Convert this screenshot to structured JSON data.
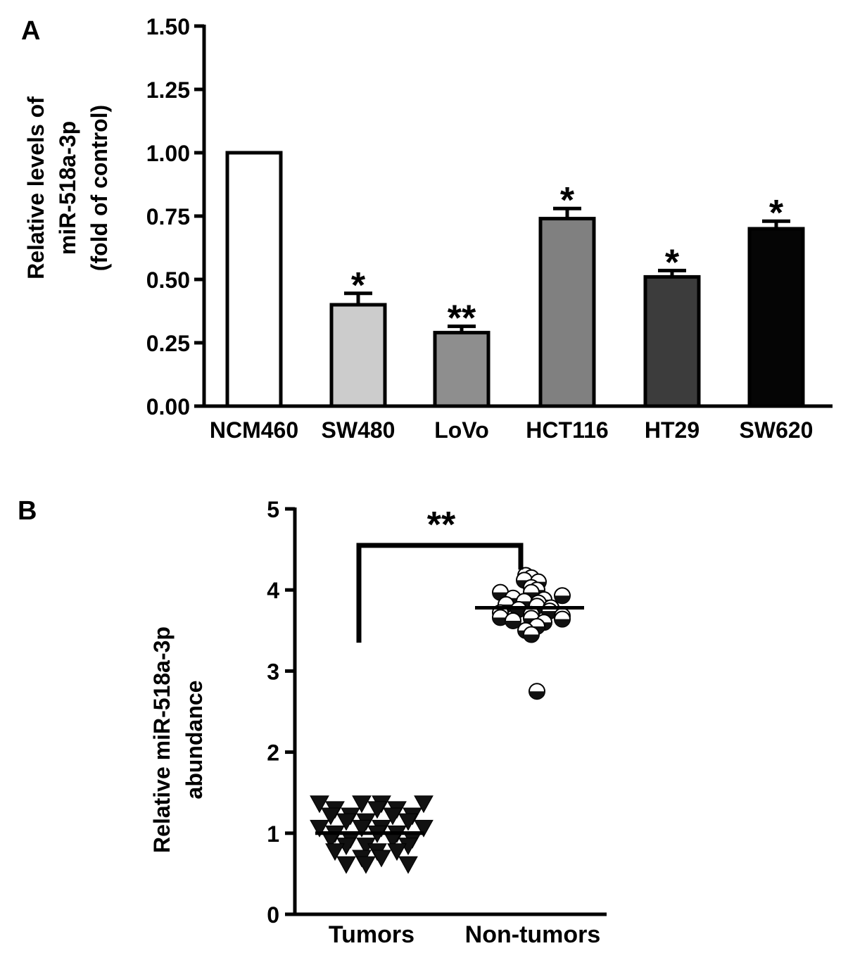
{
  "chart_data": [
    {
      "panel_label": "A",
      "type": "bar",
      "categories": [
        "NCM460",
        "SW480",
        "LoVo",
        "HCT116",
        "HT29",
        "SW620"
      ],
      "values": [
        1.0,
        0.4,
        0.29,
        0.74,
        0.51,
        0.7
      ],
      "errors": [
        0,
        0.045,
        0.025,
        0.04,
        0.025,
        0.03
      ],
      "significance": [
        "",
        "*",
        "**",
        "*",
        "*",
        "*"
      ],
      "colors": [
        "#ffffff",
        "#cccccc",
        "#8e8e8e",
        "#808080",
        "#3c3c3c",
        "#050505"
      ],
      "ylabel_lines": [
        "Relative levels of",
        "miR-518a-3p",
        "(fold of control)"
      ],
      "ylim": [
        0,
        1.5
      ],
      "yticks": [
        "0.00",
        "0.25",
        "0.50",
        "0.75",
        "1.00",
        "1.25",
        "1.50"
      ]
    },
    {
      "panel_label": "B",
      "type": "scatter",
      "categories": [
        "Tumors",
        "Non-tumors"
      ],
      "means": [
        1.0,
        3.78
      ],
      "ylabel_lines": [
        "Relative miR-518a-3p",
        "abundance"
      ],
      "ylim": [
        0,
        5
      ],
      "yticks": [
        "0",
        "1",
        "2",
        "3",
        "4",
        "5"
      ],
      "significance": "**",
      "series": [
        {
          "group": "Tumors",
          "marker": "triangle-down",
          "values": [
            1.37,
            1.37,
            1.37,
            1.37,
            1.3,
            1.3,
            1.3,
            1.22,
            1.22,
            1.22,
            1.22,
            1.15,
            1.15,
            1.15,
            1.07,
            1.07,
            1.07,
            1.07,
            1.0,
            1.0,
            1.0,
            0.93,
            0.93,
            0.93,
            0.93,
            0.85,
            0.85,
            0.85,
            0.78,
            0.78,
            0.78,
            0.7,
            0.7,
            0.62,
            0.62,
            0.62
          ]
        },
        {
          "group": "Non-tumors",
          "marker": "half-filled-circle",
          "values": [
            4.18,
            4.15,
            4.12,
            4.1,
            4.03,
            4.0,
            3.97,
            3.97,
            3.93,
            3.9,
            3.88,
            3.86,
            3.84,
            3.82,
            3.8,
            3.78,
            3.76,
            3.74,
            3.72,
            3.7,
            3.68,
            3.66,
            3.65,
            3.64,
            3.62,
            3.6,
            3.55,
            3.5,
            3.45,
            2.75
          ]
        }
      ]
    }
  ]
}
